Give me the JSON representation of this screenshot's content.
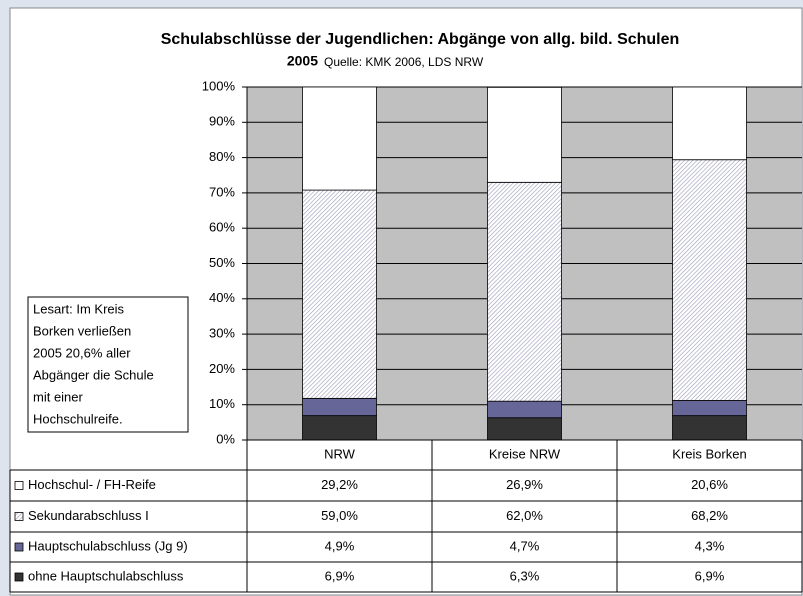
{
  "chart_data": {
    "type": "stacked_bar",
    "title": "Schulabschlüsse der Jugendlichen: Abgänge von allg. bild. Schulen",
    "subtitle": "2005",
    "source": "Quelle: KMK 2006, LDS NRW",
    "annotation_lines": [
      "Lesart: Im Kreis",
      "Borken verließen",
      "2005 20,6% aller",
      "Abgänger die Schule",
      "mit einer",
      "Hochschulreife."
    ],
    "categories": [
      "NRW",
      "Kreise NRW",
      "Kreis Borken"
    ],
    "series": [
      {
        "name": "Hochschul- / FH-Reife",
        "color": "#ffffff",
        "values": [
          29.2,
          26.9,
          20.6
        ],
        "value_labels": [
          "29,2%",
          "26,9%",
          "20,6%"
        ]
      },
      {
        "name": "Sekundarabschluss I",
        "color": "#d8d8e8",
        "pattern": "hatch",
        "values": [
          59.0,
          62.0,
          68.2
        ],
        "value_labels": [
          "59,0%",
          "62,0%",
          "68,2%"
        ]
      },
      {
        "name": "Hauptschulabschluss (Jg 9)",
        "color": "#666699",
        "values": [
          4.9,
          4.7,
          4.3
        ],
        "value_labels": [
          "4,9%",
          "4,7%",
          "4,3%"
        ]
      },
      {
        "name": "ohne Hauptschulabschluss",
        "color": "#333333",
        "values": [
          6.9,
          6.3,
          6.9
        ],
        "value_labels": [
          "6,9%",
          "6,3%",
          "6,9%"
        ]
      }
    ],
    "ylim": [
      0,
      100
    ],
    "yticks": [
      {
        "value": 0,
        "label": "0%"
      },
      {
        "value": 10,
        "label": "10%"
      },
      {
        "value": 20,
        "label": "20%"
      },
      {
        "value": 30,
        "label": "30%"
      },
      {
        "value": 40,
        "label": "40%"
      },
      {
        "value": 50,
        "label": "50%"
      },
      {
        "value": 60,
        "label": "60%"
      },
      {
        "value": 70,
        "label": "70%"
      },
      {
        "value": 80,
        "label": "80%"
      },
      {
        "value": 90,
        "label": "90%"
      },
      {
        "value": 100,
        "label": "100%"
      }
    ],
    "grid": true
  }
}
